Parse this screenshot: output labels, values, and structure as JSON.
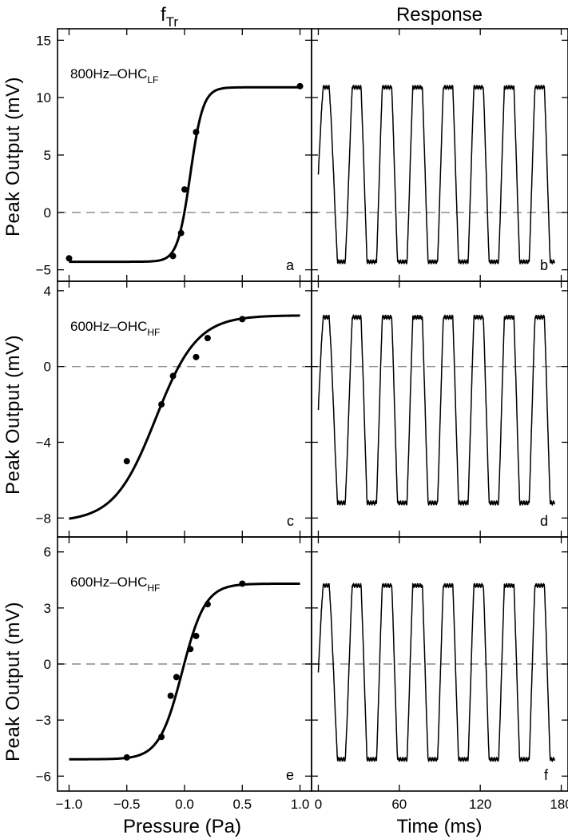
{
  "figure": {
    "column_titles": {
      "left_main": "f",
      "left_sub": "Tr",
      "right": "Response"
    },
    "y_label": "Peak Output (mV)",
    "x_label_left": "Pressure (Pa)",
    "x_label_right": "Time (ms)"
  },
  "chart_data": [
    {
      "type": "scatter",
      "panel": "a",
      "annotation": {
        "main": "800Hz–OHC",
        "sub": "LF"
      },
      "x_ticks": [
        "−1.0",
        "−0.5",
        "0.0",
        "0.5",
        "1.0"
      ],
      "y_ticks": [
        "15",
        "10",
        "5",
        "0",
        "−5"
      ],
      "xlim": [
        -1.1,
        1.1
      ],
      "ylim": [
        -6,
        16
      ],
      "points": [
        [
          -1.0,
          -4.0
        ],
        [
          -0.1,
          -3.8
        ],
        [
          -0.03,
          -1.8
        ],
        [
          0.0,
          2.0
        ],
        [
          0.1,
          7.0
        ],
        [
          1.0,
          11.0
        ]
      ],
      "fit": {
        "min": -4.3,
        "max": 10.9,
        "x0": 0.05,
        "k": 0.055
      }
    },
    {
      "type": "line",
      "panel": "b",
      "x_ticks": [
        "0",
        "60",
        "120",
        "180"
      ],
      "xlim": [
        -5,
        185
      ],
      "ylim": [
        -6,
        16
      ],
      "waveform": {
        "t_end": 175,
        "freq_hz": 0.0442,
        "phase_deg": 0,
        "clip_top": 10.9,
        "clip_bottom": -4.3,
        "amplitude": 9.5
      }
    },
    {
      "type": "scatter",
      "panel": "c",
      "annotation": {
        "main": "600Hz–OHC",
        "sub": "HF"
      },
      "x_ticks": [
        "−1.0",
        "−0.5",
        "0.0",
        "0.5",
        "1.0"
      ],
      "y_ticks": [
        "4",
        "0",
        "−4",
        "−8"
      ],
      "xlim": [
        -1.1,
        1.1
      ],
      "ylim": [
        -9,
        4.5
      ],
      "points": [
        [
          -0.5,
          -5.0
        ],
        [
          -0.2,
          -2.0
        ],
        [
          -0.1,
          -0.5
        ],
        [
          0.1,
          0.5
        ],
        [
          0.2,
          1.5
        ],
        [
          0.5,
          2.5
        ]
      ],
      "fit": {
        "min": -8.2,
        "max": 2.7,
        "x0": -0.25,
        "k": 0.18
      }
    },
    {
      "type": "line",
      "panel": "d",
      "x_ticks": [
        "0",
        "60",
        "120",
        "180"
      ],
      "xlim": [
        -5,
        185
      ],
      "ylim": [
        -9,
        4.5
      ],
      "waveform": {
        "t_end": 175,
        "freq_hz": 0.0442,
        "phase_deg": 0,
        "clip_top": 2.6,
        "clip_bottom": -7.2,
        "amplitude": 6
      }
    },
    {
      "type": "scatter",
      "panel": "e",
      "annotation": {
        "main": "600Hz–OHC",
        "sub": "HF"
      },
      "x_ticks": [
        "−1.0",
        "−0.5",
        "0.0",
        "0.5",
        "1.0"
      ],
      "y_ticks": [
        "6",
        "3",
        "0",
        "−3",
        "−6"
      ],
      "xlim": [
        -1.1,
        1.1
      ],
      "ylim": [
        -6.8,
        6.8
      ],
      "points": [
        [
          -0.5,
          -5.0
        ],
        [
          -0.2,
          -3.9
        ],
        [
          -0.12,
          -1.7
        ],
        [
          -0.07,
          -0.7
        ],
        [
          0.05,
          0.8
        ],
        [
          0.1,
          1.5
        ],
        [
          0.2,
          3.2
        ],
        [
          0.5,
          4.3
        ]
      ],
      "fit": {
        "min": -5.1,
        "max": 4.3,
        "x0": -0.02,
        "k": 0.1
      }
    },
    {
      "type": "line",
      "panel": "f",
      "x_ticks": [
        "0",
        "60",
        "120",
        "180"
      ],
      "xlim": [
        -5,
        185
      ],
      "ylim": [
        -6.8,
        6.8
      ],
      "waveform": {
        "t_end": 175,
        "freq_hz": 0.0442,
        "phase_deg": 0,
        "clip_top": 4.2,
        "clip_bottom": -5.1,
        "amplitude": 6
      }
    }
  ]
}
